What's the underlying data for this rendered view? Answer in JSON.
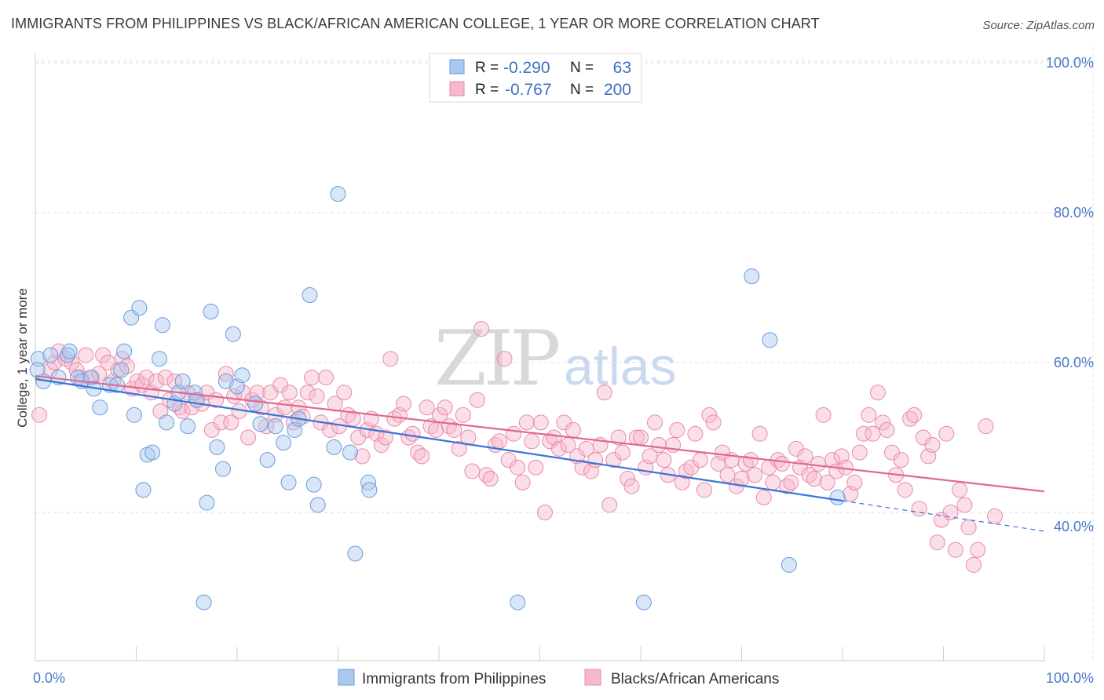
{
  "header": {
    "title": "IMMIGRANTS FROM PHILIPPINES VS BLACK/AFRICAN AMERICAN COLLEGE, 1 YEAR OR MORE CORRELATION CHART",
    "source": "Source: ZipAtlas.com"
  },
  "watermark": {
    "zip": "ZIP",
    "atlas": "atlas"
  },
  "legend_box": {
    "rows": [
      {
        "r_label": "R =",
        "r_value": "-0.290",
        "n_label": "N =",
        "n_value": "63"
      },
      {
        "r_label": "R =",
        "r_value": "-0.767",
        "n_label": "N =",
        "n_value": "200"
      }
    ]
  },
  "bottom_legend": [
    {
      "label": "Immigrants from Philippines"
    },
    {
      "label": "Blacks/African Americans"
    }
  ],
  "chart_data": {
    "type": "scatter",
    "title": "IMMIGRANTS FROM PHILIPPINES VS BLACK/AFRICAN AMERICAN COLLEGE, 1 YEAR OR MORE CORRELATION CHART",
    "xlabel": "",
    "ylabel": "College, 1 year or more",
    "xlim": [
      0,
      100
    ],
    "ylim": [
      20,
      102
    ],
    "x_tick_labels": [
      "0.0%",
      "100.0%"
    ],
    "y_ticks": [
      40,
      60,
      80,
      100
    ],
    "y_tick_labels": [
      "40.0%",
      "60.0%",
      "80.0%",
      "100.0%"
    ],
    "grid": true,
    "legend_placement": "bottom",
    "colors": {
      "blue_fill": "#a9c8f0",
      "blue_stroke": "#6a9bdb",
      "blue_line": "#3a73d6",
      "pink_fill": "#f6b8cc",
      "pink_stroke": "#e98aa8",
      "pink_line": "#e06890"
    },
    "series": [
      {
        "name": "Immigrants from Philippines",
        "R": -0.29,
        "N": 63,
        "trend": {
          "x0": 0,
          "y0": 57.8,
          "x1": 100,
          "y1": 37.5,
          "solid_until_x": 80
        },
        "points": [
          [
            0.3,
            60.5
          ],
          [
            0.8,
            57.5
          ],
          [
            1.5,
            61
          ],
          [
            2.3,
            58
          ],
          [
            3.2,
            61
          ],
          [
            3.4,
            61.5
          ],
          [
            4.2,
            58
          ],
          [
            4.6,
            57.5
          ],
          [
            5.5,
            58
          ],
          [
            5.8,
            56.5
          ],
          [
            6.4,
            54
          ],
          [
            7.4,
            57
          ],
          [
            8.1,
            57
          ],
          [
            8.5,
            59
          ],
          [
            8.8,
            61.5
          ],
          [
            9.5,
            66
          ],
          [
            9.8,
            53
          ],
          [
            10.3,
            67.3
          ],
          [
            10.7,
            43
          ],
          [
            11.1,
            47.7
          ],
          [
            11.6,
            48
          ],
          [
            12.3,
            60.5
          ],
          [
            12.6,
            65
          ],
          [
            13.0,
            52
          ],
          [
            13.8,
            54.5
          ],
          [
            14.2,
            56
          ],
          [
            14.6,
            57.5
          ],
          [
            15.1,
            51.5
          ],
          [
            15.8,
            56
          ],
          [
            16.0,
            55
          ],
          [
            16.7,
            28
          ],
          [
            17.0,
            41.3
          ],
          [
            17.4,
            66.8
          ],
          [
            18.0,
            48.7
          ],
          [
            18.6,
            45.8
          ],
          [
            18.9,
            57.5
          ],
          [
            19.6,
            63.8
          ],
          [
            20.0,
            56.8
          ],
          [
            20.5,
            58.3
          ],
          [
            21.8,
            54.5
          ],
          [
            22.3,
            51.8
          ],
          [
            23.0,
            47
          ],
          [
            23.8,
            51.5
          ],
          [
            24.6,
            49.3
          ],
          [
            25.1,
            44
          ],
          [
            25.7,
            51
          ],
          [
            26.1,
            52.5
          ],
          [
            27.2,
            69
          ],
          [
            27.6,
            43.7
          ],
          [
            28.0,
            41
          ],
          [
            29.6,
            48.7
          ],
          [
            30.0,
            82.5
          ],
          [
            31.2,
            48
          ],
          [
            31.7,
            34.5
          ],
          [
            33.0,
            44
          ],
          [
            33.1,
            43
          ],
          [
            47.8,
            28
          ],
          [
            60.3,
            28
          ],
          [
            71.0,
            71.5
          ],
          [
            72.8,
            63
          ],
          [
            74.7,
            33
          ],
          [
            79.5,
            42
          ],
          [
            0.2,
            59
          ]
        ]
      },
      {
        "name": "Blacks/African Americans",
        "R": -0.767,
        "N": 200,
        "trend": {
          "x0": 0,
          "y0": 58.2,
          "x1": 100,
          "y1": 42.8
        },
        "points": [
          [
            0.4,
            53
          ],
          [
            1.5,
            59
          ],
          [
            1.9,
            60
          ],
          [
            2.3,
            61.5
          ],
          [
            3.0,
            60.5
          ],
          [
            3.6,
            60
          ],
          [
            4.1,
            59
          ],
          [
            4.5,
            58
          ],
          [
            5.0,
            61
          ],
          [
            5.6,
            58
          ],
          [
            6.3,
            58.5
          ],
          [
            6.7,
            61
          ],
          [
            7.2,
            60
          ],
          [
            7.7,
            57.5
          ],
          [
            8.2,
            59
          ],
          [
            8.6,
            60.5
          ],
          [
            9.1,
            59.5
          ],
          [
            9.6,
            56.5
          ],
          [
            10.1,
            57.5
          ],
          [
            10.6,
            57
          ],
          [
            11.0,
            58
          ],
          [
            11.5,
            56
          ],
          [
            12.0,
            57.5
          ],
          [
            12.4,
            53.5
          ],
          [
            12.9,
            58
          ],
          [
            13.3,
            55
          ],
          [
            13.8,
            57.5
          ],
          [
            14.3,
            54
          ],
          [
            14.6,
            53.5
          ],
          [
            15.1,
            56
          ],
          [
            15.5,
            54
          ],
          [
            16.0,
            55
          ],
          [
            16.5,
            54.5
          ],
          [
            17.0,
            56
          ],
          [
            17.5,
            51
          ],
          [
            17.9,
            55
          ],
          [
            18.4,
            52
          ],
          [
            18.9,
            58.5
          ],
          [
            19.4,
            52
          ],
          [
            19.7,
            55.5
          ],
          [
            20.2,
            53.5
          ],
          [
            20.6,
            56
          ],
          [
            21.1,
            50
          ],
          [
            21.5,
            55
          ],
          [
            22.0,
            56
          ],
          [
            22.4,
            54
          ],
          [
            22.9,
            51.5
          ],
          [
            23.3,
            56
          ],
          [
            23.8,
            53
          ],
          [
            24.3,
            57
          ],
          [
            24.7,
            54
          ],
          [
            25.2,
            56
          ],
          [
            25.6,
            52
          ],
          [
            26.1,
            54
          ],
          [
            26.5,
            52.8
          ],
          [
            27.0,
            56
          ],
          [
            27.4,
            58
          ],
          [
            27.9,
            55.5
          ],
          [
            28.3,
            52
          ],
          [
            28.8,
            58
          ],
          [
            29.2,
            51
          ],
          [
            29.7,
            54.5
          ],
          [
            30.1,
            51.5
          ],
          [
            30.6,
            56
          ],
          [
            31.0,
            53
          ],
          [
            31.5,
            52.5
          ],
          [
            32.0,
            50
          ],
          [
            32.4,
            47.5
          ],
          [
            32.9,
            51
          ],
          [
            33.3,
            52.5
          ],
          [
            33.8,
            50.5
          ],
          [
            34.3,
            49
          ],
          [
            34.7,
            50
          ],
          [
            35.2,
            60.5
          ],
          [
            35.6,
            52.5
          ],
          [
            36.1,
            53
          ],
          [
            36.5,
            54.5
          ],
          [
            37.0,
            50
          ],
          [
            37.4,
            50.5
          ],
          [
            37.9,
            48
          ],
          [
            38.3,
            47.5
          ],
          [
            38.8,
            54
          ],
          [
            39.2,
            51.5
          ],
          [
            39.7,
            51
          ],
          [
            40.1,
            53
          ],
          [
            40.6,
            54
          ],
          [
            41.0,
            51.5
          ],
          [
            41.5,
            51
          ],
          [
            42.0,
            48.5
          ],
          [
            42.4,
            53
          ],
          [
            42.9,
            50
          ],
          [
            43.3,
            45.5
          ],
          [
            43.8,
            55
          ],
          [
            44.2,
            64.5
          ],
          [
            44.7,
            45
          ],
          [
            45.1,
            44.5
          ],
          [
            45.6,
            49
          ],
          [
            46.0,
            49.5
          ],
          [
            46.5,
            60.5
          ],
          [
            46.9,
            47
          ],
          [
            47.4,
            50.5
          ],
          [
            47.8,
            46
          ],
          [
            48.3,
            44
          ],
          [
            48.7,
            52
          ],
          [
            49.2,
            49.5
          ],
          [
            49.6,
            46
          ],
          [
            50.1,
            52
          ],
          [
            50.5,
            40
          ],
          [
            51.0,
            49.5
          ],
          [
            51.4,
            50
          ],
          [
            51.9,
            48.5
          ],
          [
            52.4,
            52
          ],
          [
            52.8,
            49
          ],
          [
            53.3,
            51
          ],
          [
            53.7,
            47.5
          ],
          [
            54.2,
            46
          ],
          [
            54.6,
            48.5
          ],
          [
            55.1,
            45.5
          ],
          [
            55.5,
            47
          ],
          [
            56.0,
            49
          ],
          [
            56.4,
            56
          ],
          [
            56.9,
            41
          ],
          [
            57.3,
            47
          ],
          [
            57.8,
            50
          ],
          [
            58.2,
            48
          ],
          [
            58.7,
            44.5
          ],
          [
            59.1,
            43.5
          ],
          [
            59.6,
            50
          ],
          [
            60.0,
            50
          ],
          [
            60.5,
            46
          ],
          [
            60.9,
            47.5
          ],
          [
            61.4,
            52
          ],
          [
            61.8,
            49
          ],
          [
            62.3,
            47
          ],
          [
            62.7,
            45
          ],
          [
            63.2,
            49
          ],
          [
            63.6,
            51
          ],
          [
            64.1,
            44
          ],
          [
            64.5,
            45.5
          ],
          [
            65.0,
            46
          ],
          [
            65.4,
            50.5
          ],
          [
            65.9,
            47
          ],
          [
            66.3,
            43
          ],
          [
            66.8,
            53
          ],
          [
            67.2,
            52
          ],
          [
            67.7,
            46.5
          ],
          [
            68.1,
            48
          ],
          [
            68.6,
            45
          ],
          [
            69.0,
            47
          ],
          [
            69.5,
            43.5
          ],
          [
            70.0,
            44.5
          ],
          [
            70.4,
            46.5
          ],
          [
            70.9,
            47
          ],
          [
            71.3,
            45
          ],
          [
            71.8,
            50.5
          ],
          [
            72.2,
            42
          ],
          [
            72.7,
            46
          ],
          [
            73.1,
            44
          ],
          [
            73.6,
            47
          ],
          [
            74.0,
            46.5
          ],
          [
            74.5,
            43.5
          ],
          [
            74.9,
            44
          ],
          [
            75.4,
            48.5
          ],
          [
            75.8,
            46
          ],
          [
            76.3,
            47.5
          ],
          [
            76.7,
            45
          ],
          [
            77.2,
            44.5
          ],
          [
            77.6,
            46.5
          ],
          [
            78.1,
            53
          ],
          [
            78.5,
            44
          ],
          [
            79.0,
            47
          ],
          [
            79.4,
            45.5
          ],
          [
            79.9,
            47.5
          ],
          [
            80.3,
            46
          ],
          [
            80.8,
            42.5
          ],
          [
            81.2,
            44
          ],
          [
            81.7,
            48
          ],
          [
            82.1,
            50.5
          ],
          [
            82.6,
            53
          ],
          [
            83.0,
            50.5
          ],
          [
            83.5,
            56
          ],
          [
            84.0,
            52
          ],
          [
            84.4,
            51
          ],
          [
            84.9,
            48
          ],
          [
            85.3,
            45
          ],
          [
            85.8,
            47
          ],
          [
            86.2,
            43
          ],
          [
            86.7,
            52.5
          ],
          [
            87.1,
            53
          ],
          [
            87.6,
            40.5
          ],
          [
            88.0,
            50
          ],
          [
            88.5,
            47.5
          ],
          [
            88.9,
            49
          ],
          [
            89.4,
            36
          ],
          [
            89.8,
            39
          ],
          [
            90.3,
            50.5
          ],
          [
            90.7,
            40
          ],
          [
            91.2,
            35
          ],
          [
            91.6,
            43
          ],
          [
            92.1,
            41
          ],
          [
            92.5,
            38
          ],
          [
            93.0,
            33
          ],
          [
            93.4,
            35
          ],
          [
            94.2,
            51.5
          ],
          [
            95.1,
            39.5
          ]
        ]
      }
    ]
  }
}
